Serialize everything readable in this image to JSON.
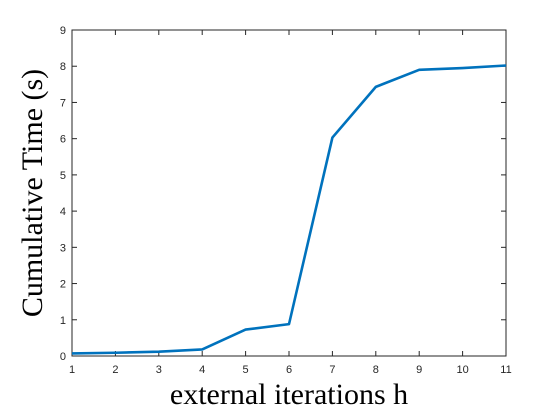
{
  "chart_data": {
    "type": "line",
    "x_label": "external iterations h",
    "y_label": "Cumulative Time (s)",
    "x": [
      1,
      2,
      3,
      4,
      5,
      6,
      7,
      8,
      9,
      10,
      11
    ],
    "series": [
      {
        "color": "#0072bd",
        "values": [
          0.07,
          0.09,
          0.12,
          0.18,
          0.73,
          0.88,
          6.03,
          7.43,
          7.9,
          7.95,
          8.02
        ]
      }
    ],
    "xlim": [
      1,
      11
    ],
    "xticks": [
      1,
      2,
      3,
      4,
      5,
      6,
      7,
      8,
      9,
      10,
      11
    ],
    "ylim": [
      0,
      9
    ],
    "yticks": [
      0,
      1,
      2,
      3,
      4,
      5,
      6,
      7,
      8,
      9
    ],
    "grid": false
  }
}
